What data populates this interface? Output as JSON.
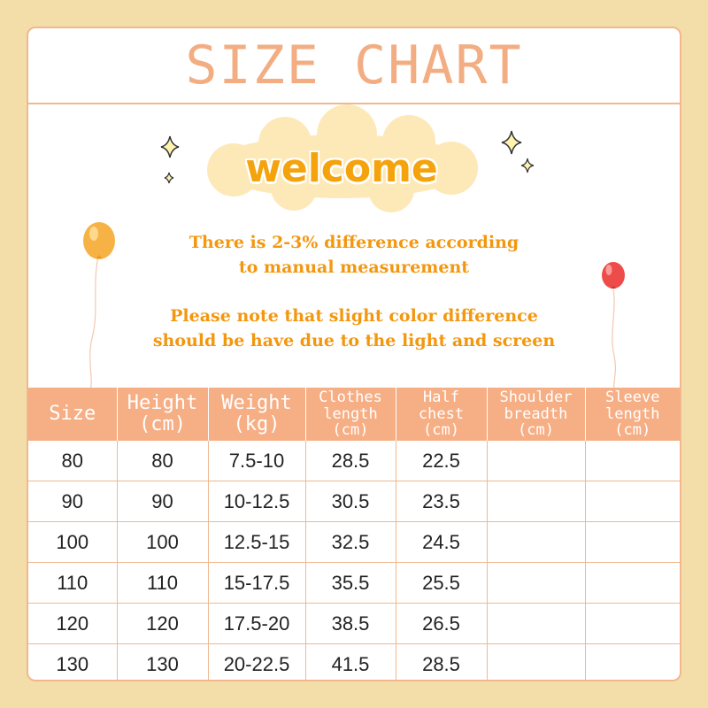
{
  "title": "SIZE CHART",
  "welcome": "welcome",
  "note_1": {
    "line_1": "There is 2-3% difference according",
    "line_2": "to manual measurement"
  },
  "note_2": {
    "line_1": "Please note that slight color difference",
    "line_2": "should be have due to the light and screen"
  },
  "colors": {
    "background": "#f3deaa",
    "accent": "#f6ae85",
    "title_text": "#f3ad82",
    "welcome_text": "#f4a30d",
    "note_text": "#f3970f",
    "balloon_left": "#f7b246",
    "balloon_right": "#ee4b4b"
  },
  "decorations": [
    "sparkle-icon",
    "cloud-shape",
    "balloon-icon"
  ],
  "table": {
    "headers": [
      {
        "line_1": "Size"
      },
      {
        "line_1": "Height",
        "line_2": "(cm)"
      },
      {
        "line_1": "Weight",
        "line_2": "(kg)"
      },
      {
        "line_1": "Clothes",
        "line_2": "length",
        "line_3": "(cm)"
      },
      {
        "line_1": "Half",
        "line_2": "chest",
        "line_3": "(cm)"
      },
      {
        "line_1": "Shoulder",
        "line_2": "breadth",
        "line_3": "(cm)"
      },
      {
        "line_1": "Sleeve",
        "line_2": "length",
        "line_3": "(cm)"
      }
    ],
    "rows": [
      [
        "80",
        "80",
        "7.5-10",
        "28.5",
        "22.5",
        "",
        ""
      ],
      [
        "90",
        "90",
        "10-12.5",
        "30.5",
        "23.5",
        "",
        ""
      ],
      [
        "100",
        "100",
        "12.5-15",
        "32.5",
        "24.5",
        "",
        ""
      ],
      [
        "110",
        "110",
        "15-17.5",
        "35.5",
        "25.5",
        "",
        ""
      ],
      [
        "120",
        "120",
        "17.5-20",
        "38.5",
        "26.5",
        "",
        ""
      ],
      [
        "130",
        "130",
        "20-22.5",
        "41.5",
        "28.5",
        "",
        ""
      ]
    ]
  }
}
